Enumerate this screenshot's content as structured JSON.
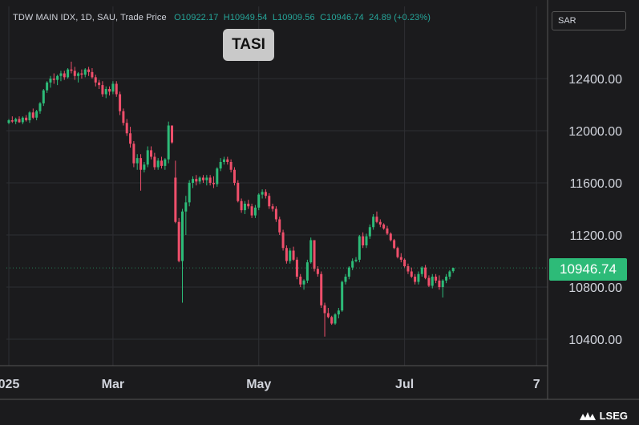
{
  "header": {
    "symbol_text": "TDW MAIN IDX, 1D, SAU, Trade Price",
    "o_label": "O",
    "o_value": "10922.17",
    "h_label": "H",
    "h_value": "10949.54",
    "l_label": "L",
    "l_value": "10909.56",
    "c_label": "C",
    "c_value": "10946.74",
    "change": "24.89",
    "change_pct": "(+0.23%)"
  },
  "badge": {
    "label": "TASI"
  },
  "currency": {
    "label": "SAR"
  },
  "last_price": {
    "label": "10946.74"
  },
  "logo": {
    "label": "LSEG"
  },
  "colors": {
    "up": "#2dbb78",
    "down": "#ef4f6b",
    "grid": "#2e2f33",
    "axis_text": "#d1d4dc",
    "background": "#1b1b1d"
  },
  "chart_data": {
    "type": "candlestick",
    "y_ticks": [
      "12400.00",
      "12000.00",
      "11600.00",
      "11200.00",
      "10800.00",
      "10400.00"
    ],
    "y_tick_values": [
      12400,
      12000,
      11600,
      11200,
      10800,
      10400
    ],
    "x_ticks": [
      "025",
      "Mar",
      "May",
      "Jul",
      "7"
    ],
    "x_tick_index": [
      0,
      30,
      72,
      114,
      152
    ],
    "grid": true,
    "candles": [
      [
        12060,
        12090,
        12050,
        12080
      ],
      [
        12080,
        12110,
        12060,
        12070
      ],
      [
        12070,
        12100,
        12050,
        12090
      ],
      [
        12090,
        12110,
        12060,
        12065
      ],
      [
        12065,
        12110,
        12050,
        12100
      ],
      [
        12100,
        12120,
        12070,
        12080
      ],
      [
        12080,
        12150,
        12060,
        12140
      ],
      [
        12140,
        12170,
        12090,
        12100
      ],
      [
        12100,
        12160,
        12080,
        12150
      ],
      [
        12150,
        12220,
        12130,
        12210
      ],
      [
        12210,
        12320,
        12190,
        12310
      ],
      [
        12310,
        12380,
        12290,
        12370
      ],
      [
        12370,
        12420,
        12330,
        12400
      ],
      [
        12400,
        12440,
        12360,
        12390
      ],
      [
        12390,
        12430,
        12350,
        12420
      ],
      [
        12420,
        12460,
        12380,
        12440
      ],
      [
        12440,
        12460,
        12390,
        12410
      ],
      [
        12410,
        12480,
        12400,
        12470
      ],
      [
        12470,
        12530,
        12440,
        12460
      ],
      [
        12460,
        12490,
        12390,
        12420
      ],
      [
        12420,
        12450,
        12370,
        12440
      ],
      [
        12440,
        12470,
        12400,
        12430
      ],
      [
        12430,
        12480,
        12410,
        12470
      ],
      [
        12470,
        12490,
        12420,
        12450
      ],
      [
        12450,
        12480,
        12400,
        12410
      ],
      [
        12410,
        12430,
        12340,
        12370
      ],
      [
        12370,
        12390,
        12320,
        12350
      ],
      [
        12350,
        12380,
        12260,
        12280
      ],
      [
        12280,
        12340,
        12250,
        12320
      ],
      [
        12320,
        12340,
        12270,
        12300
      ],
      [
        12300,
        12380,
        12280,
        12360
      ],
      [
        12360,
        12380,
        12260,
        12280
      ],
      [
        12280,
        12300,
        12120,
        12150
      ],
      [
        12150,
        12170,
        12040,
        12060
      ],
      [
        12060,
        12090,
        11960,
        11980
      ],
      [
        11980,
        12030,
        11870,
        11900
      ],
      [
        11900,
        11920,
        11720,
        11750
      ],
      [
        11750,
        11820,
        11700,
        11790
      ],
      [
        11790,
        11820,
        11540,
        11700
      ],
      [
        11700,
        11760,
        11680,
        11740
      ],
      [
        11740,
        11880,
        11720,
        11850
      ],
      [
        11850,
        11880,
        11780,
        11800
      ],
      [
        11800,
        11830,
        11700,
        11720
      ],
      [
        11720,
        11790,
        11700,
        11770
      ],
      [
        11770,
        11800,
        11710,
        11730
      ],
      [
        11730,
        11790,
        11700,
        11780
      ],
      [
        11780,
        12070,
        11750,
        12040
      ],
      [
        12040,
        12040,
        11900,
        11910
      ],
      [
        11640,
        11770,
        11290,
        11300
      ],
      [
        11300,
        11330,
        10990,
        11000
      ],
      [
        11000,
        11400,
        10680,
        11380
      ],
      [
        11380,
        11500,
        11200,
        11450
      ],
      [
        11450,
        11620,
        11420,
        11600
      ],
      [
        11600,
        11650,
        11560,
        11630
      ],
      [
        11630,
        11660,
        11580,
        11610
      ],
      [
        11610,
        11650,
        11590,
        11640
      ],
      [
        11640,
        11660,
        11600,
        11620
      ],
      [
        11620,
        11660,
        11580,
        11640
      ],
      [
        11640,
        11660,
        11580,
        11600
      ],
      [
        11600,
        11650,
        11560,
        11590
      ],
      [
        11590,
        11720,
        11570,
        11710
      ],
      [
        11710,
        11790,
        11690,
        11760
      ],
      [
        11760,
        11800,
        11740,
        11780
      ],
      [
        11780,
        11800,
        11740,
        11760
      ],
      [
        11760,
        11780,
        11680,
        11700
      ],
      [
        11700,
        11720,
        11580,
        11600
      ],
      [
        11600,
        11620,
        11450,
        11460
      ],
      [
        11460,
        11480,
        11370,
        11390
      ],
      [
        11390,
        11460,
        11360,
        11440
      ],
      [
        11440,
        11470,
        11400,
        11420
      ],
      [
        11420,
        11440,
        11330,
        11350
      ],
      [
        11350,
        11430,
        11330,
        11410
      ],
      [
        11410,
        11520,
        11390,
        11510
      ],
      [
        11510,
        11550,
        11480,
        11530
      ],
      [
        11530,
        11550,
        11480,
        11500
      ],
      [
        11500,
        11520,
        11400,
        11420
      ],
      [
        11420,
        11440,
        11380,
        11400
      ],
      [
        11400,
        11420,
        11300,
        11320
      ],
      [
        11320,
        11340,
        11200,
        11220
      ],
      [
        11220,
        11240,
        11080,
        11100
      ],
      [
        11100,
        11120,
        10980,
        11000
      ],
      [
        11000,
        11100,
        10980,
        11080
      ],
      [
        11080,
        11110,
        11000,
        11010
      ],
      [
        11010,
        11030,
        10860,
        10880
      ],
      [
        10880,
        10900,
        10800,
        10820
      ],
      [
        10820,
        10860,
        10780,
        10850
      ],
      [
        10850,
        11010,
        10830,
        10990
      ],
      [
        10990,
        11180,
        10980,
        11160
      ],
      [
        11160,
        11160,
        10920,
        10940
      ],
      [
        10940,
        10960,
        10880,
        10900
      ],
      [
        10900,
        10920,
        10640,
        10660
      ],
      [
        10660,
        10680,
        10420,
        10600
      ],
      [
        10600,
        10640,
        10560,
        10570
      ],
      [
        10570,
        10580,
        10510,
        10520
      ],
      [
        10520,
        10600,
        10510,
        10590
      ],
      [
        10590,
        10640,
        10560,
        10620
      ],
      [
        10620,
        10850,
        10610,
        10840
      ],
      [
        10840,
        10900,
        10820,
        10880
      ],
      [
        10880,
        10960,
        10860,
        10950
      ],
      [
        10950,
        11020,
        10930,
        11000
      ],
      [
        11000,
        11030,
        10990,
        11010
      ],
      [
        11010,
        11200,
        10990,
        11190
      ],
      [
        11190,
        11220,
        11100,
        11120
      ],
      [
        11120,
        11210,
        11100,
        11190
      ],
      [
        11190,
        11280,
        11170,
        11260
      ],
      [
        11260,
        11360,
        11240,
        11340
      ],
      [
        11340,
        11380,
        11290,
        11300
      ],
      [
        11300,
        11320,
        11260,
        11280
      ],
      [
        11280,
        11290,
        11240,
        11250
      ],
      [
        11250,
        11270,
        11200,
        11210
      ],
      [
        11210,
        11220,
        11150,
        11160
      ],
      [
        11160,
        11170,
        11090,
        11100
      ],
      [
        11100,
        11110,
        11020,
        11030
      ],
      [
        11030,
        11060,
        10990,
        11010
      ],
      [
        11010,
        11020,
        10950,
        10960
      ],
      [
        10960,
        10980,
        10900,
        10920
      ],
      [
        10920,
        10950,
        10870,
        10880
      ],
      [
        10880,
        10900,
        10820,
        10840
      ],
      [
        10840,
        10920,
        10820,
        10900
      ],
      [
        10900,
        10960,
        10880,
        10950
      ],
      [
        10950,
        10970,
        10860,
        10870
      ],
      [
        10870,
        10890,
        10800,
        10810
      ],
      [
        10810,
        10900,
        10790,
        10880
      ],
      [
        10880,
        10900,
        10830,
        10850
      ],
      [
        10850,
        10890,
        10780,
        10800
      ],
      [
        10800,
        10860,
        10720,
        10850
      ],
      [
        10850,
        10900,
        10830,
        10880
      ],
      [
        10880,
        10930,
        10860,
        10920
      ],
      [
        10922.17,
        10949.54,
        10909.56,
        10946.74
      ]
    ]
  }
}
